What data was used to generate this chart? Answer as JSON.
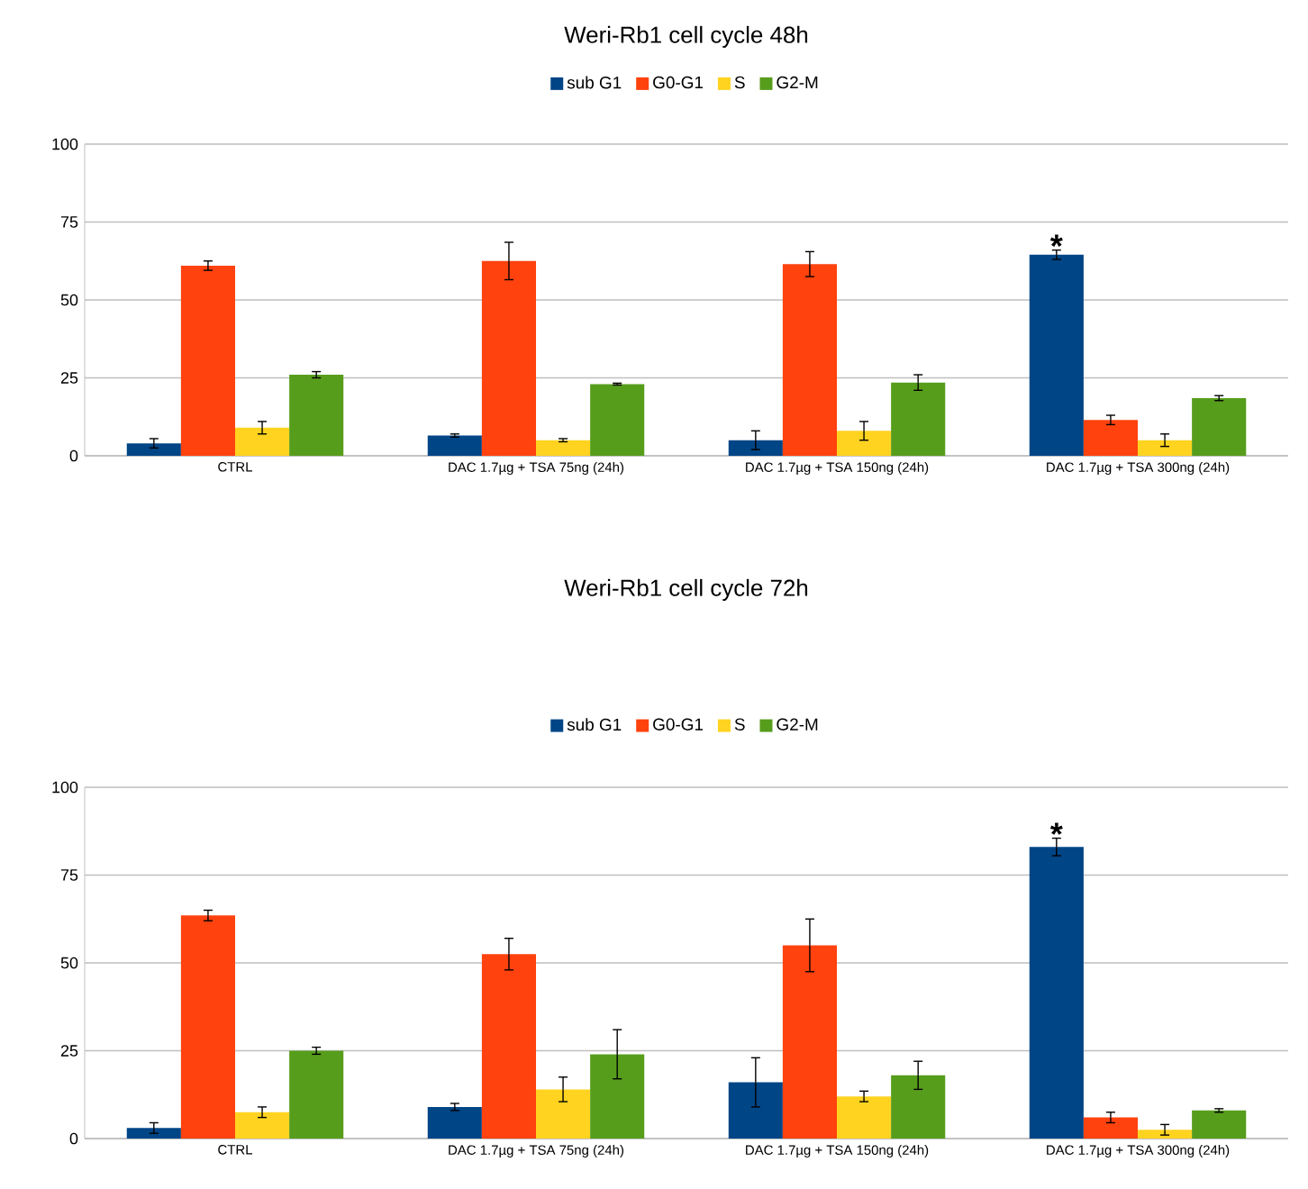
{
  "chart_data": [
    {
      "type": "bar",
      "title": "Weri-Rb1 cell cycle 48h",
      "categories": [
        "CTRL",
        "DAC 1.7µg + TSA 75ng (24h)",
        "DAC 1.7µg + TSA 150ng (24h)",
        "DAC 1.7µg + TSA 300ng (24h)"
      ],
      "series": [
        {
          "name": "sub G1",
          "color": "#004586",
          "values": [
            4,
            6.5,
            5,
            64.5
          ],
          "errors": [
            1.5,
            0.5,
            3,
            1.5
          ]
        },
        {
          "name": "G0-G1",
          "color": "#ff420e",
          "values": [
            61,
            62.5,
            61.5,
            11.5
          ],
          "errors": [
            1.5,
            6,
            4,
            1.5
          ]
        },
        {
          "name": "S",
          "color": "#ffd320",
          "values": [
            9,
            5,
            8,
            5
          ],
          "errors": [
            2,
            0.5,
            3,
            2
          ]
        },
        {
          "name": "G2-M",
          "color": "#579d1c",
          "values": [
            26,
            23,
            23.5,
            18.5
          ],
          "errors": [
            1,
            0.3,
            2.5,
            0.8
          ]
        }
      ],
      "ylim": [
        0,
        100
      ],
      "yticks": [
        0,
        25,
        50,
        75,
        100
      ],
      "grid": "y",
      "legend": "top",
      "annotations": [
        "*"
      ]
    },
    {
      "type": "bar",
      "title": "Weri-Rb1 cell cycle 72h",
      "categories": [
        "CTRL",
        "DAC 1.7µg + TSA 75ng (24h)",
        "DAC 1.7µg + TSA 150ng (24h)",
        "DAC 1.7µg + TSA 300ng (24h)"
      ],
      "series": [
        {
          "name": "sub G1",
          "color": "#004586",
          "values": [
            3,
            9,
            16,
            83
          ],
          "errors": [
            1.5,
            1,
            7,
            2.5
          ]
        },
        {
          "name": "G0-G1",
          "color": "#ff420e",
          "values": [
            63.5,
            52.5,
            55,
            6
          ],
          "errors": [
            1.5,
            4.5,
            7.5,
            1.5
          ]
        },
        {
          "name": "S",
          "color": "#ffd320",
          "values": [
            7.5,
            14,
            12,
            2.5
          ],
          "errors": [
            1.5,
            3.5,
            1.5,
            1.5
          ]
        },
        {
          "name": "G2-M",
          "color": "#579d1c",
          "values": [
            25,
            24,
            18,
            8
          ],
          "errors": [
            1,
            7,
            4,
            0.5
          ]
        }
      ],
      "ylim": [
        0,
        100
      ],
      "yticks": [
        0,
        25,
        50,
        75,
        100
      ],
      "grid": "y",
      "legend": "top",
      "annotations": [
        "*"
      ]
    }
  ]
}
